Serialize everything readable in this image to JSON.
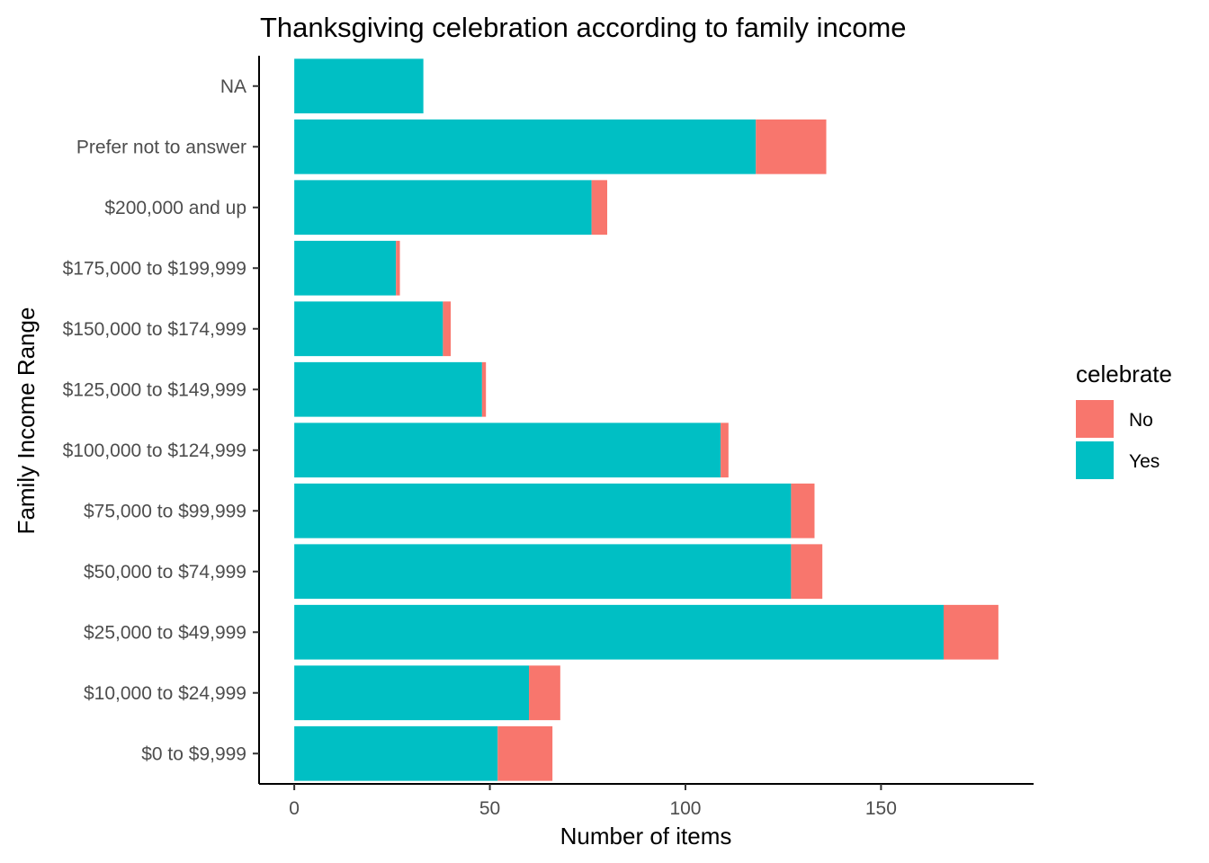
{
  "chart_data": {
    "type": "bar",
    "orientation": "horizontal",
    "stacked": true,
    "title": "Thanksgiving celebration according to family income",
    "xlabel": "Number of items",
    "ylabel": "Family Income Range",
    "categories": [
      "$0 to $9,999",
      "$10,000 to $24,999",
      "$25,000 to $49,999",
      "$50,000 to $74,999",
      "$75,000 to $99,999",
      "$100,000 to $124,999",
      "$125,000 to $149,999",
      "$150,000 to $174,999",
      "$175,000 to $199,999",
      "$200,000 and up",
      "Prefer not to answer",
      "NA"
    ],
    "series": [
      {
        "name": "Yes",
        "color": "#00BFC4",
        "values": [
          52,
          60,
          166,
          127,
          127,
          109,
          48,
          38,
          26,
          76,
          118,
          33
        ]
      },
      {
        "name": "No",
        "color": "#F8766D",
        "values": [
          14,
          8,
          14,
          8,
          6,
          2,
          1,
          2,
          1,
          4,
          18,
          0
        ]
      }
    ],
    "xlim": [
      -9,
      189
    ],
    "xticks": [
      0,
      50,
      100,
      150
    ],
    "grid": false,
    "legend": {
      "title": "celebrate",
      "position": "right",
      "items": [
        {
          "label": "No",
          "color": "#F8766D"
        },
        {
          "label": "Yes",
          "color": "#00BFC4"
        }
      ]
    }
  }
}
